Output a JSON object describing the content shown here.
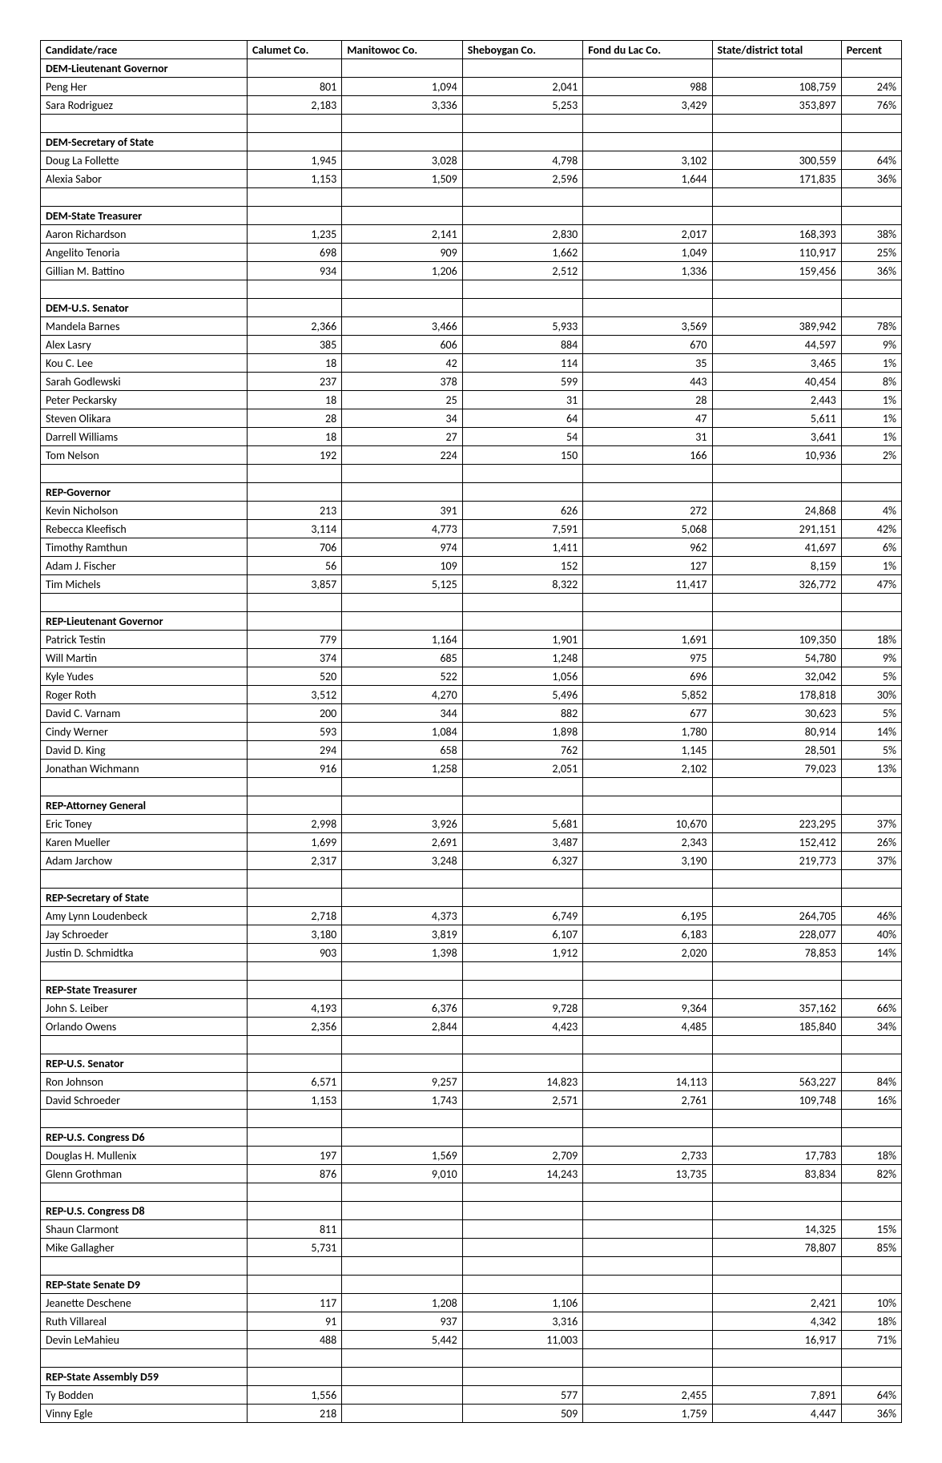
{
  "headers": [
    "Candidate/race",
    "Calumet Co.",
    "Manitowoc Co.",
    "Sheboygan Co.",
    "Fond du Lac Co.",
    "State/district total",
    "Percent"
  ],
  "sections": [
    {
      "title": "DEM-Lieutenant Governor",
      "rows": [
        {
          "name": "Peng Her",
          "v": [
            "801",
            "1,094",
            "2,041",
            "988",
            "108,759",
            "24%"
          ]
        },
        {
          "name": "Sara Rodriguez",
          "v": [
            "2,183",
            "3,336",
            "5,253",
            "3,429",
            "353,897",
            "76%"
          ]
        }
      ]
    },
    {
      "title": "DEM-Secretary of State",
      "rows": [
        {
          "name": "Doug La Follette",
          "v": [
            "1,945",
            "3,028",
            "4,798",
            "3,102",
            "300,559",
            "64%"
          ]
        },
        {
          "name": "Alexia Sabor",
          "v": [
            "1,153",
            "1,509",
            "2,596",
            "1,644",
            "171,835",
            "36%"
          ]
        }
      ]
    },
    {
      "title": "DEM-State Treasurer",
      "rows": [
        {
          "name": "Aaron Richardson",
          "v": [
            "1,235",
            "2,141",
            "2,830",
            "2,017",
            "168,393",
            "38%"
          ]
        },
        {
          "name": "Angelito Tenoria",
          "v": [
            "698",
            "909",
            "1,662",
            "1,049",
            "110,917",
            "25%"
          ]
        },
        {
          "name": "Gillian M. Battino",
          "v": [
            "934",
            "1,206",
            "2,512",
            "1,336",
            "159,456",
            "36%"
          ]
        }
      ]
    },
    {
      "title": "DEM-U.S. Senator",
      "rows": [
        {
          "name": "Mandela Barnes",
          "v": [
            "2,366",
            "3,466",
            "5,933",
            "3,569",
            "389,942",
            "78%"
          ]
        },
        {
          "name": "Alex Lasry",
          "v": [
            "385",
            "606",
            "884",
            "670",
            "44,597",
            "9%"
          ]
        },
        {
          "name": "Kou C. Lee",
          "v": [
            "18",
            "42",
            "114",
            "35",
            "3,465",
            "1%"
          ]
        },
        {
          "name": "Sarah Godlewski",
          "v": [
            "237",
            "378",
            "599",
            "443",
            "40,454",
            "8%"
          ]
        },
        {
          "name": "Peter Peckarsky",
          "v": [
            "18",
            "25",
            "31",
            "28",
            "2,443",
            "1%"
          ]
        },
        {
          "name": "Steven Olikara",
          "v": [
            "28",
            "34",
            "64",
            "47",
            "5,611",
            "1%"
          ]
        },
        {
          "name": "Darrell Williams",
          "v": [
            "18",
            "27",
            "54",
            "31",
            "3,641",
            "1%"
          ]
        },
        {
          "name": "Tom Nelson",
          "v": [
            "192",
            "224",
            "150",
            "166",
            "10,936",
            "2%"
          ]
        }
      ]
    },
    {
      "title": "REP-Governor",
      "rows": [
        {
          "name": "Kevin Nicholson",
          "v": [
            "213",
            "391",
            "626",
            "272",
            "24,868",
            "4%"
          ]
        },
        {
          "name": "Rebecca Kleefisch",
          "v": [
            "3,114",
            "4,773",
            "7,591",
            "5,068",
            "291,151",
            "42%"
          ]
        },
        {
          "name": "Timothy Ramthun",
          "v": [
            "706",
            "974",
            "1,411",
            "962",
            "41,697",
            "6%"
          ]
        },
        {
          "name": "Adam J. Fischer",
          "v": [
            "56",
            "109",
            "152",
            "127",
            "8,159",
            "1%"
          ]
        },
        {
          "name": "Tim Michels",
          "v": [
            "3,857",
            "5,125",
            "8,322",
            "11,417",
            "326,772",
            "47%"
          ]
        }
      ]
    },
    {
      "title": "REP-Lieutenant Governor",
      "rows": [
        {
          "name": "Patrick Testin",
          "v": [
            "779",
            "1,164",
            "1,901",
            "1,691",
            "109,350",
            "18%"
          ]
        },
        {
          "name": "Will Martin",
          "v": [
            "374",
            "685",
            "1,248",
            "975",
            "54,780",
            "9%"
          ]
        },
        {
          "name": "Kyle Yudes",
          "v": [
            "520",
            "522",
            "1,056",
            "696",
            "32,042",
            "5%"
          ]
        },
        {
          "name": "Roger Roth",
          "v": [
            "3,512",
            "4,270",
            "5,496",
            "5,852",
            "178,818",
            "30%"
          ]
        },
        {
          "name": "David C. Varnam",
          "v": [
            "200",
            "344",
            "882",
            "677",
            "30,623",
            "5%"
          ]
        },
        {
          "name": "Cindy Werner",
          "v": [
            "593",
            "1,084",
            "1,898",
            "1,780",
            "80,914",
            "14%"
          ]
        },
        {
          "name": "David D. King",
          "v": [
            "294",
            "658",
            "762",
            "1,145",
            "28,501",
            "5%"
          ]
        },
        {
          "name": "Jonathan Wichmann",
          "v": [
            "916",
            "1,258",
            "2,051",
            "2,102",
            "79,023",
            "13%"
          ]
        }
      ]
    },
    {
      "title": "REP-Attorney General",
      "rows": [
        {
          "name": "Eric Toney",
          "v": [
            "2,998",
            "3,926",
            "5,681",
            "10,670",
            "223,295",
            "37%"
          ]
        },
        {
          "name": "Karen Mueller",
          "v": [
            "1,699",
            "2,691",
            "3,487",
            "2,343",
            "152,412",
            "26%"
          ]
        },
        {
          "name": "Adam Jarchow",
          "v": [
            "2,317",
            "3,248",
            "6,327",
            "3,190",
            "219,773",
            "37%"
          ]
        }
      ]
    },
    {
      "title": "REP-Secretary of State",
      "rows": [
        {
          "name": "Amy Lynn Loudenbeck",
          "v": [
            "2,718",
            "4,373",
            "6,749",
            "6,195",
            "264,705",
            "46%"
          ]
        },
        {
          "name": "Jay Schroeder",
          "v": [
            "3,180",
            "3,819",
            "6,107",
            "6,183",
            "228,077",
            "40%"
          ]
        },
        {
          "name": "Justin D. Schmidtka",
          "v": [
            "903",
            "1,398",
            "1,912",
            "2,020",
            "78,853",
            "14%"
          ]
        }
      ]
    },
    {
      "title": "REP-State Treasurer",
      "rows": [
        {
          "name": "John S. Leiber",
          "v": [
            "4,193",
            "6,376",
            "9,728",
            "9,364",
            "357,162",
            "66%"
          ]
        },
        {
          "name": "Orlando Owens",
          "v": [
            "2,356",
            "2,844",
            "4,423",
            "4,485",
            "185,840",
            "34%"
          ]
        }
      ]
    },
    {
      "title": "REP-U.S. Senator",
      "rows": [
        {
          "name": "Ron Johnson",
          "v": [
            "6,571",
            "9,257",
            "14,823",
            "14,113",
            "563,227",
            "84%"
          ]
        },
        {
          "name": "David Schroeder",
          "v": [
            "1,153",
            "1,743",
            "2,571",
            "2,761",
            "109,748",
            "16%"
          ]
        }
      ]
    },
    {
      "title": "REP-U.S. Congress D6",
      "rows": [
        {
          "name": "Douglas H. Mullenix",
          "v": [
            "197",
            "1,569",
            "2,709",
            "2,733",
            "17,783",
            "18%"
          ]
        },
        {
          "name": "Glenn Grothman",
          "v": [
            "876",
            "9,010",
            "14,243",
            "13,735",
            "83,834",
            "82%"
          ]
        }
      ]
    },
    {
      "title": "REP-U.S. Congress D8",
      "rows": [
        {
          "name": "Shaun Clarmont",
          "v": [
            "811",
            "",
            "",
            "",
            "14,325",
            "15%"
          ]
        },
        {
          "name": "Mike Gallagher",
          "v": [
            "5,731",
            "",
            "",
            "",
            "78,807",
            "85%"
          ]
        }
      ]
    },
    {
      "title": "REP-State Senate D9",
      "rows": [
        {
          "name": "Jeanette Deschene",
          "v": [
            "117",
            "1,208",
            "1,106",
            "",
            "2,421",
            "10%"
          ]
        },
        {
          "name": "Ruth Villareal",
          "v": [
            "91",
            "937",
            "3,316",
            "",
            "4,342",
            "18%"
          ]
        },
        {
          "name": "Devin LeMahieu",
          "v": [
            "488",
            "5,442",
            "11,003",
            "",
            "16,917",
            "71%"
          ]
        }
      ]
    },
    {
      "title": "REP-State Assembly D59",
      "rows": [
        {
          "name": "Ty Bodden",
          "v": [
            "1,556",
            "",
            "577",
            "2,455",
            "7,891",
            "64%"
          ]
        },
        {
          "name": "Vinny Egle",
          "v": [
            "218",
            "",
            "509",
            "1,759",
            "4,447",
            "36%"
          ]
        }
      ]
    }
  ]
}
